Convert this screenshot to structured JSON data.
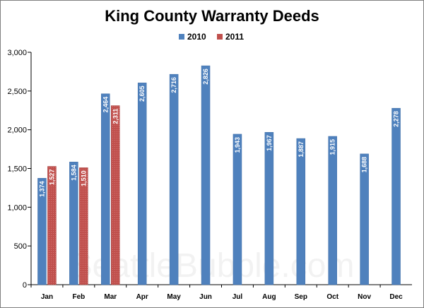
{
  "watermark": "SeattleBubble.com",
  "chart_data": {
    "type": "bar",
    "title": "King County Warranty Deeds",
    "xlabel": "",
    "ylabel": "",
    "categories": [
      "Jan",
      "Feb",
      "Mar",
      "Apr",
      "May",
      "Jun",
      "Jul",
      "Aug",
      "Sep",
      "Oct",
      "Nov",
      "Dec"
    ],
    "series": [
      {
        "name": "2010",
        "color": "#4f81bd",
        "values": [
          1374,
          1584,
          2464,
          2605,
          2716,
          2826,
          1943,
          1967,
          1887,
          1915,
          1688,
          2278
        ],
        "labels": [
          "1,374",
          "1,584",
          "2,464",
          "2,605",
          "2,716",
          "2,826",
          "1,943",
          "1,967",
          "1,887",
          "1,915",
          "1,688",
          "2,278"
        ]
      },
      {
        "name": "2011",
        "color": "#c0504d",
        "values": [
          1527,
          1510,
          2311,
          null,
          null,
          null,
          null,
          null,
          null,
          null,
          null,
          null
        ],
        "labels": [
          "1,527",
          "1,510",
          "2,311",
          "",
          "",
          "",
          "",
          "",
          "",
          "",
          "",
          ""
        ]
      }
    ],
    "ylim": [
      0,
      3000
    ],
    "yticks": [
      0,
      500,
      1000,
      1500,
      2000,
      2500,
      3000
    ],
    "ytick_labels": [
      "0",
      "500",
      "1,000",
      "1,500",
      "2,000",
      "2,500",
      "3,000"
    ],
    "grid": false,
    "legend_position": "top-center"
  }
}
